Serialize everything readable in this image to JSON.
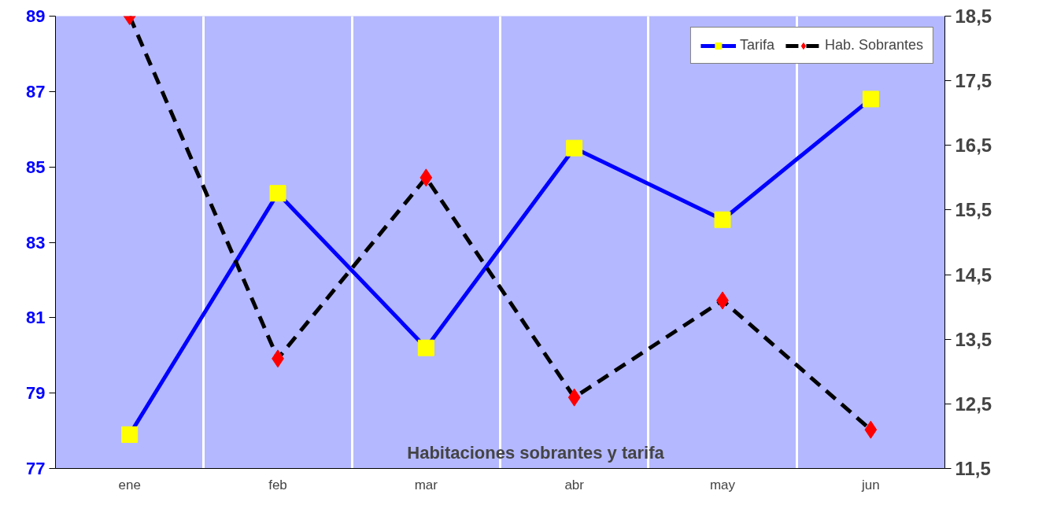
{
  "chart_data": {
    "type": "line",
    "title": "Habitaciones sobrantes y tarifa",
    "categories": [
      "ene",
      "feb",
      "mar",
      "abr",
      "may",
      "jun"
    ],
    "ylim": [
      77,
      89
    ],
    "yticks": [
      77,
      79,
      81,
      83,
      85,
      87,
      89
    ],
    "y2lim": [
      11.5,
      18.5
    ],
    "y2ticks": [
      {
        "value": 11.5,
        "label": "11,5"
      },
      {
        "value": 12.5,
        "label": "12,5"
      },
      {
        "value": 13.5,
        "label": "13,5"
      },
      {
        "value": 14.5,
        "label": "14,5"
      },
      {
        "value": 15.5,
        "label": "15,5"
      },
      {
        "value": 16.5,
        "label": "16,5"
      },
      {
        "value": 17.5,
        "label": "17,5"
      },
      {
        "value": 18.5,
        "label": "18,5"
      }
    ],
    "grid": "x",
    "legend": "top right",
    "series": [
      {
        "name": "Tarifa",
        "color": "#0000ff",
        "marker": "square",
        "colors": [
          "#ffff00",
          "#ffff00",
          "#ffff00",
          "#ffff00",
          "#ffff00",
          "#ffff00"
        ],
        "line_style": "solid",
        "values": [
          77.9,
          84.3,
          80.2,
          85.5,
          83.6,
          86.8
        ]
      },
      {
        "name": "Hab. Sobrantes",
        "color": "#000000",
        "marker": "diamond",
        "colors": [
          "#ff0000",
          "#ff0000",
          "#ff0000",
          "#ff0000",
          "#ff0000",
          "#ff0000"
        ],
        "line_style": "dashed",
        "axis": "y2",
        "values": [
          18.5,
          13.2,
          16.0,
          12.6,
          14.1,
          12.1
        ]
      }
    ]
  }
}
